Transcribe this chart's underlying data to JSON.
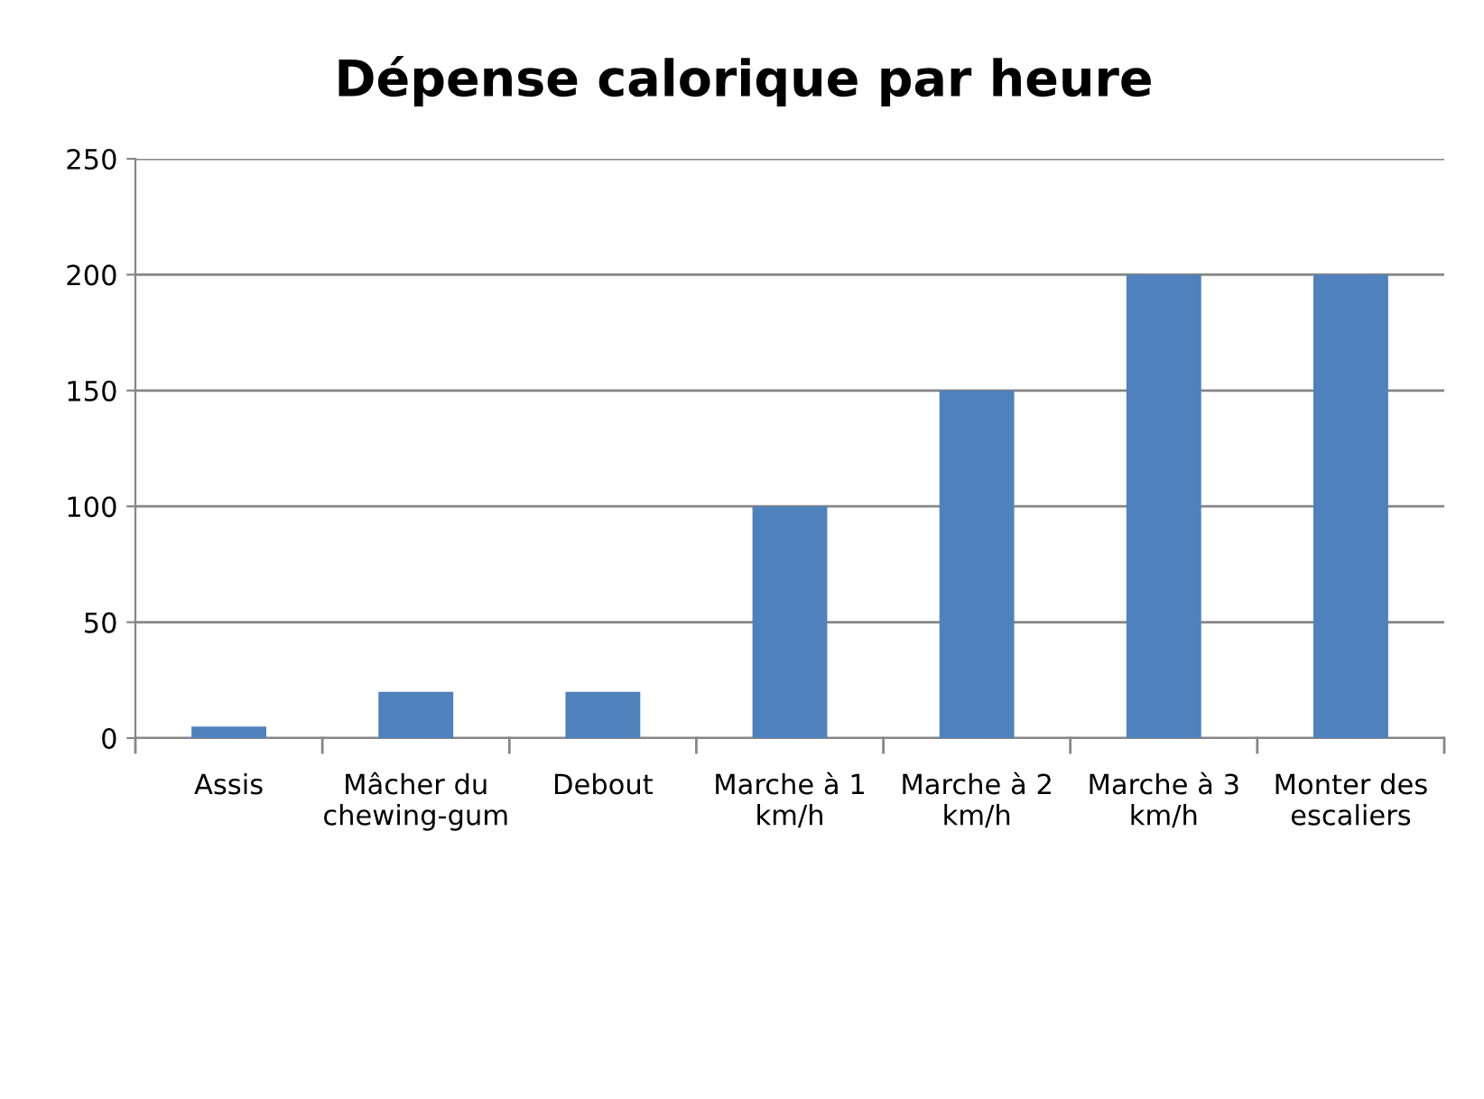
{
  "chart_data": {
    "type": "bar",
    "title": "Dépense calorique par heure",
    "categories": [
      "Assis",
      "Mâcher du chewing-gum",
      "Debout",
      "Marche à 1 km/h",
      "Marche à 2 km/h",
      "Marche à 3 km/h",
      "Monter des escaliers"
    ],
    "values": [
      5,
      20,
      20,
      100,
      150,
      200,
      200
    ],
    "color": "#4f81bd",
    "ylim": [
      0,
      250
    ],
    "yticks": [
      0,
      50,
      100,
      150,
      200,
      250
    ],
    "grid": "y",
    "legend": false
  }
}
